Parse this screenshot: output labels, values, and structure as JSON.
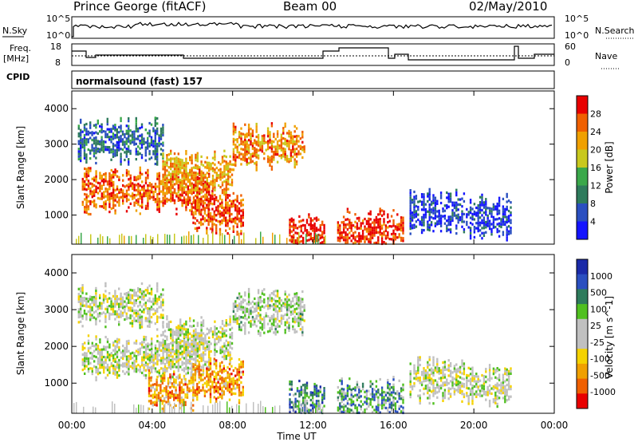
{
  "header": {
    "station": "Prince George (fitACF)",
    "beam": "Beam 00",
    "date": "02/May/2010"
  },
  "sky_panel": {
    "label": "N.Sky",
    "left_ticks": [
      "10^5",
      "10^0"
    ],
    "right_ticks": [
      "10^5",
      "10^0"
    ],
    "right_label": "N.Search"
  },
  "freq_panel": {
    "label_line1": "Freq.",
    "label_line2": "[MHz]",
    "left_ticks": [
      "18",
      "8"
    ],
    "right_ticks": [
      "60",
      "0"
    ],
    "right_label": "Nave"
  },
  "cpid": {
    "label": "CPID",
    "text": "normalsound (fast) 157"
  },
  "colors": {
    "power": [
      "#1414ff",
      "#2a4fc0",
      "#2e7b5c",
      "#3aa84a",
      "#c8c81e",
      "#f0a000",
      "#f06000",
      "#e80000"
    ],
    "velocity": [
      "#e80000",
      "#f06000",
      "#f0a000",
      "#f5d200",
      "#c0c0c0",
      "#c0c0c0",
      "#50c020",
      "#2e7b5c",
      "#2a4fc0",
      "#1a2aa8"
    ]
  },
  "chart_data": [
    {
      "type": "heatmap",
      "title": "",
      "xlabel": "Time UT",
      "ylabel": "Slant Range [km]",
      "xlim": [
        "00:00",
        "00:00"
      ],
      "x_ticks": [
        "00:00",
        "04:00",
        "08:00",
        "12:00",
        "16:00",
        "20:00",
        "00:00"
      ],
      "ylim": [
        180,
        4500
      ],
      "y_ticks": [
        1000,
        2000,
        3000,
        4000
      ],
      "colorbar": {
        "label": "Power [dB]",
        "ticks": [
          "28",
          "24",
          "20",
          "16",
          "12",
          "8",
          "4"
        ]
      },
      "regions": [
        {
          "from_h": 0.3,
          "to_h": 4.5,
          "range_km": 3100,
          "level": 0.25
        },
        {
          "from_h": 0.5,
          "to_h": 6.8,
          "range_km": 1700,
          "level": 0.8
        },
        {
          "from_h": 4.5,
          "to_h": 8.0,
          "range_km": 2200,
          "level": 0.7
        },
        {
          "from_h": 8.0,
          "to_h": 11.6,
          "range_km": 2950,
          "level": 0.75
        },
        {
          "from_h": 6.0,
          "to_h": 8.5,
          "range_km": 1100,
          "level": 0.85
        },
        {
          "from_h": 10.8,
          "to_h": 12.6,
          "range_km": 450,
          "level": 0.95
        },
        {
          "from_h": 13.2,
          "to_h": 16.5,
          "range_km": 550,
          "level": 0.9
        },
        {
          "from_h": 16.8,
          "to_h": 19.5,
          "range_km": 1100,
          "level": 0.15
        },
        {
          "from_h": 19.6,
          "to_h": 21.8,
          "range_km": 950,
          "level": 0.15
        }
      ]
    },
    {
      "type": "heatmap",
      "title": "",
      "xlabel": "Time UT",
      "ylabel": "Slant Range [km]",
      "xlim": [
        "00:00",
        "00:00"
      ],
      "x_ticks": [
        "00:00",
        "04:00",
        "08:00",
        "12:00",
        "16:00",
        "20:00",
        "00:00"
      ],
      "ylim": [
        180,
        4500
      ],
      "y_ticks": [
        1000,
        2000,
        3000,
        4000
      ],
      "colorbar": {
        "label": "Velocity [m s^-1]",
        "ticks": [
          "1000",
          "500",
          "100",
          "25",
          "-25",
          "-100",
          "-500",
          "-1000"
        ]
      },
      "regions": [
        {
          "from_h": 0.3,
          "to_h": 4.5,
          "range_km": 3100,
          "level": 0.5
        },
        {
          "from_h": 0.5,
          "to_h": 6.8,
          "range_km": 1700,
          "level": 0.5
        },
        {
          "from_h": 4.5,
          "to_h": 8.0,
          "range_km": 2200,
          "level": 0.5
        },
        {
          "from_h": 8.0,
          "to_h": 11.6,
          "range_km": 2950,
          "level": 0.55
        },
        {
          "from_h": 3.8,
          "to_h": 6.0,
          "range_km": 750,
          "level": 0.25
        },
        {
          "from_h": 6.0,
          "to_h": 8.5,
          "range_km": 1100,
          "level": 0.25
        },
        {
          "from_h": 10.8,
          "to_h": 12.6,
          "range_km": 450,
          "level": 0.75
        },
        {
          "from_h": 13.2,
          "to_h": 16.5,
          "range_km": 550,
          "level": 0.7
        },
        {
          "from_h": 16.8,
          "to_h": 19.5,
          "range_km": 1100,
          "level": 0.5
        },
        {
          "from_h": 19.6,
          "to_h": 21.8,
          "range_km": 950,
          "level": 0.5
        }
      ]
    }
  ]
}
